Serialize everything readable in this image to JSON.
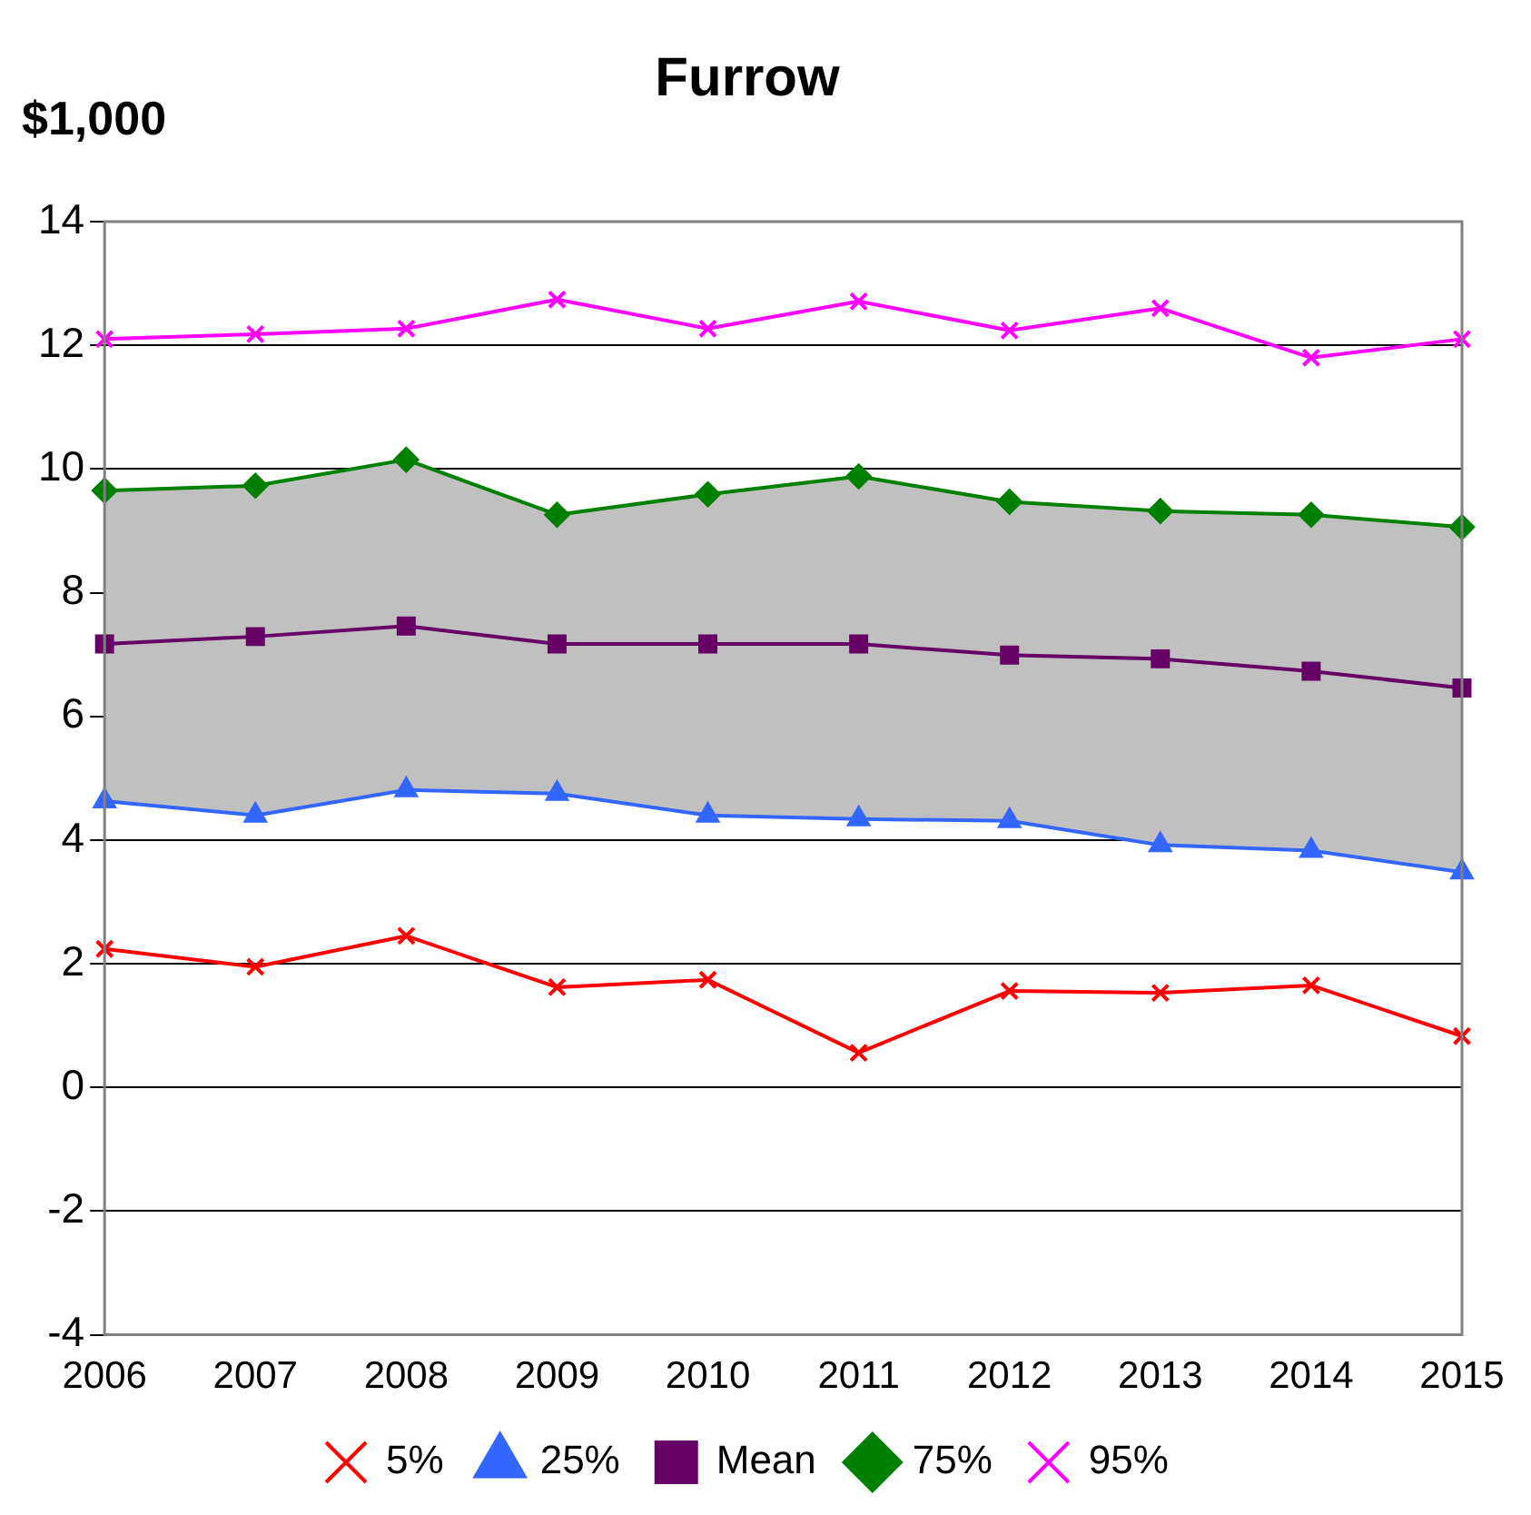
{
  "chart_data": {
    "type": "line",
    "title": "Furrow",
    "ylabel": "$1,000",
    "categories": [
      "2006",
      "2007",
      "2008",
      "2009",
      "2010",
      "2011",
      "2012",
      "2013",
      "2014",
      "2015"
    ],
    "series": [
      {
        "name": "5%",
        "color": "#ff0000",
        "marker": "cross",
        "values": [
          2.24,
          1.95,
          2.45,
          1.62,
          1.74,
          0.56,
          1.56,
          1.53,
          1.65,
          0.83
        ]
      },
      {
        "name": "25%",
        "color": "#3366ff",
        "marker": "triangle",
        "values": [
          4.63,
          4.4,
          4.81,
          4.75,
          4.4,
          4.34,
          4.31,
          3.92,
          3.83,
          3.48
        ]
      },
      {
        "name": "Mean",
        "color": "#660066",
        "marker": "square",
        "values": [
          7.17,
          7.29,
          7.46,
          7.17,
          7.17,
          7.17,
          6.99,
          6.93,
          6.73,
          6.46
        ],
        "lower": [
          4.63,
          4.4,
          4.81,
          4.75,
          4.4,
          4.34,
          4.31,
          3.92,
          3.83,
          3.48
        ],
        "upper": [
          9.65,
          9.73,
          10.15,
          9.26,
          9.59,
          9.88,
          9.47,
          9.32,
          9.26,
          9.06
        ]
      },
      {
        "name": "75%",
        "color": "#008000",
        "marker": "diamond",
        "values": [
          9.65,
          9.73,
          10.15,
          9.26,
          9.59,
          9.88,
          9.47,
          9.32,
          9.26,
          9.06
        ]
      },
      {
        "name": "95%",
        "color": "#ff00ff",
        "marker": "cross",
        "values": [
          12.1,
          12.18,
          12.27,
          12.74,
          12.27,
          12.71,
          12.24,
          12.6,
          11.8,
          12.1
        ]
      }
    ],
    "ylim": [
      -4,
      14
    ],
    "yticks": [
      -4,
      -2,
      0,
      2,
      4,
      6,
      8,
      10,
      12,
      14
    ],
    "grid": "y",
    "legend": "bottom",
    "line_style": "solid"
  }
}
